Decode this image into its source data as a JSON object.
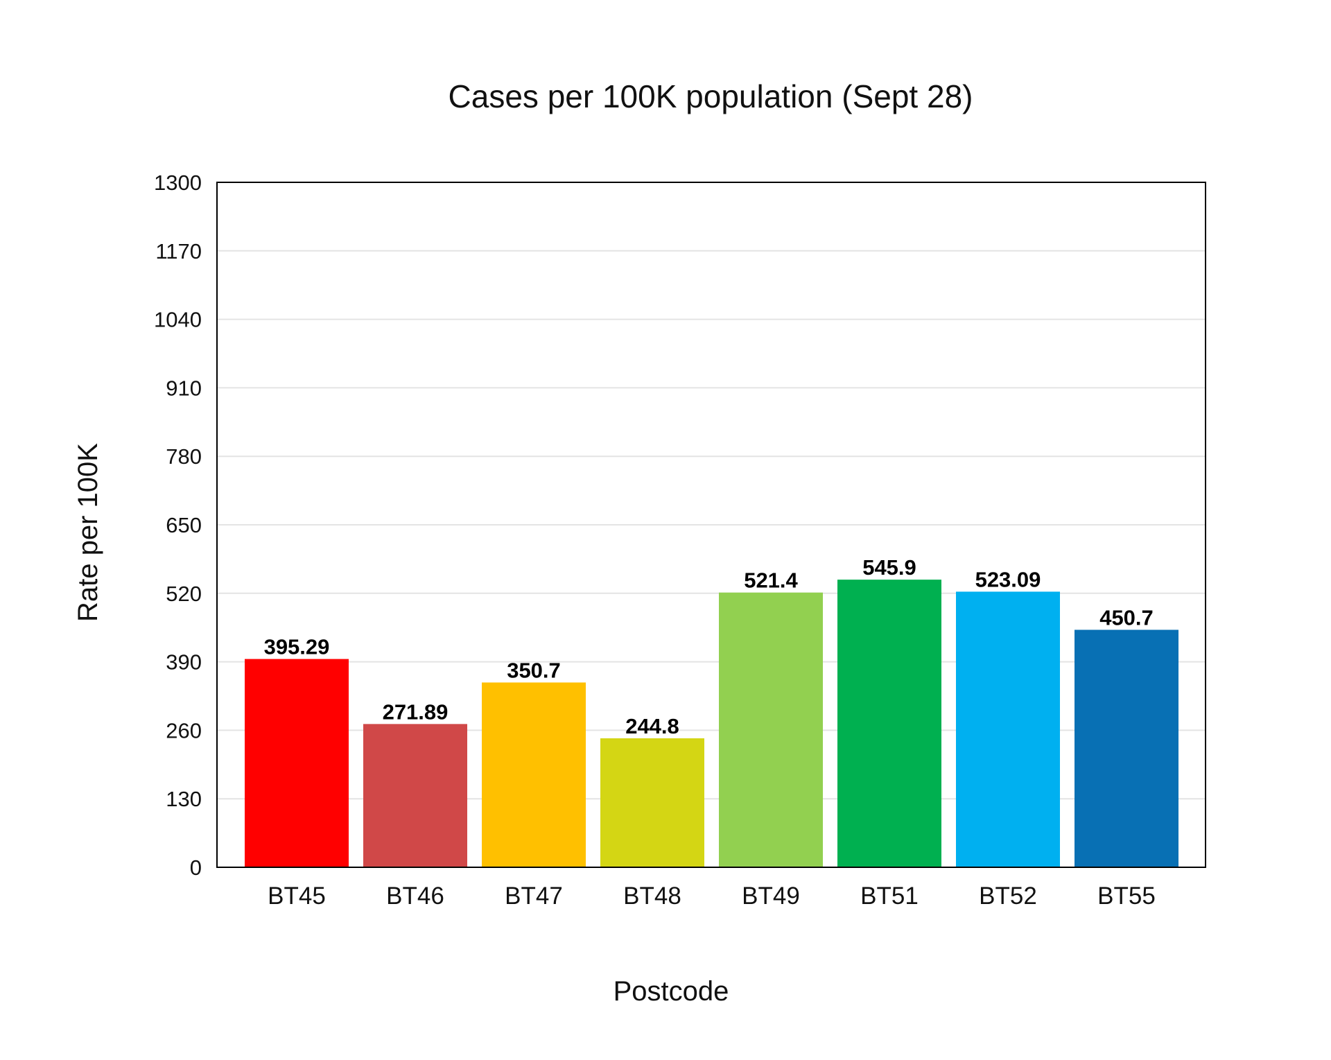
{
  "chart_data": {
    "type": "bar",
    "title": "Cases per 100K population (Sept 28)",
    "xlabel": "Postcode",
    "ylabel": "Rate per 100K",
    "categories": [
      "BT45",
      "BT46",
      "BT47",
      "BT48",
      "BT49",
      "BT51",
      "BT52",
      "BT55"
    ],
    "values": [
      395.29,
      271.89,
      350.7,
      244.8,
      521.4,
      545.9,
      523.09,
      450.7
    ],
    "value_labels": [
      "395.29",
      "271.89",
      "350.7",
      "244.8",
      "521.4",
      "545.9",
      "523.09",
      "450.7"
    ],
    "colors": [
      "#ff0000",
      "#d04848",
      "#ffc000",
      "#d4d614",
      "#92d050",
      "#00b050",
      "#00b0f0",
      "#0870b4"
    ],
    "ylim": [
      0,
      1300
    ],
    "yticks": [
      "0",
      "130",
      "260",
      "390",
      "520",
      "650",
      "780",
      "910",
      "1040",
      "1170",
      "1300"
    ],
    "grid": true,
    "legend": "none"
  }
}
